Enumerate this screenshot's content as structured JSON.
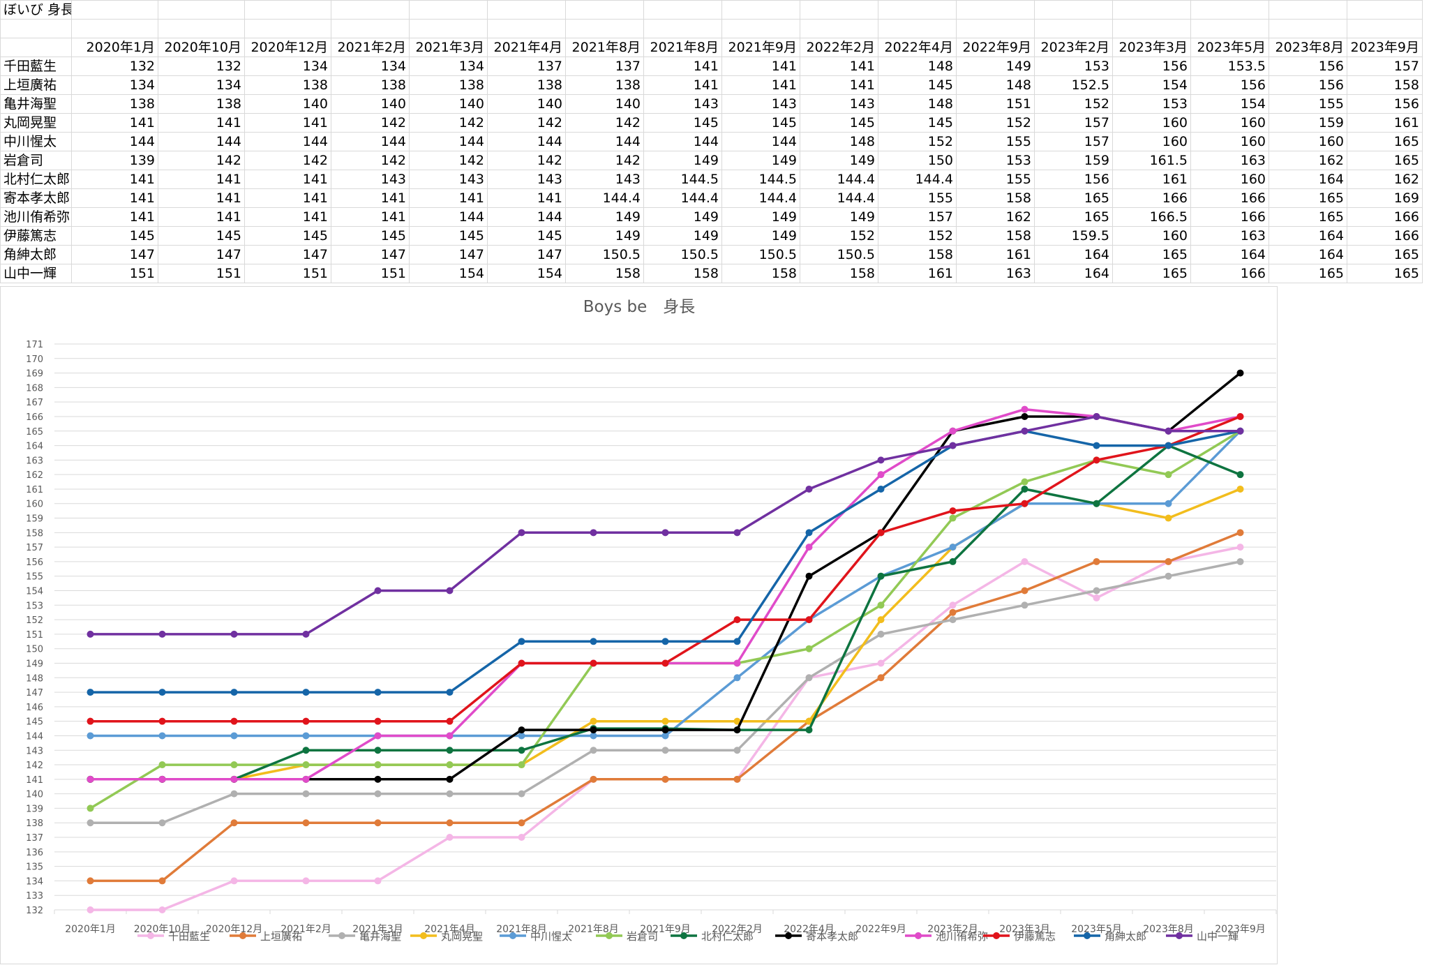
{
  "sheet": {
    "title": "ぼいび 身長",
    "headers": [
      "2020年1月",
      "2020年10月",
      "2020年12月",
      "2021年2月",
      "2021年3月",
      "2021年4月",
      "2021年8月",
      "2021年8月",
      "2021年9月",
      "2022年2月",
      "2022年4月",
      "2022年9月",
      "2023年2月",
      "2023年3月",
      "2023年5月",
      "2023年8月",
      "2023年9月"
    ],
    "rows": [
      {
        "name": "千田藍生",
        "values": [
          "132",
          "132",
          "134",
          "134",
          "134",
          "137",
          "137",
          "141",
          "141",
          "141",
          "148",
          "149",
          "153",
          "156",
          "153.5",
          "156",
          "157"
        ]
      },
      {
        "name": "上垣廣祐",
        "values": [
          "134",
          "134",
          "138",
          "138",
          "138",
          "138",
          "138",
          "141",
          "141",
          "141",
          "145",
          "148",
          "152.5",
          "154",
          "156",
          "156",
          "158"
        ]
      },
      {
        "name": "亀井海聖",
        "values": [
          "138",
          "138",
          "140",
          "140",
          "140",
          "140",
          "140",
          "143",
          "143",
          "143",
          "148",
          "151",
          "152",
          "153",
          "154",
          "155",
          "156"
        ]
      },
      {
        "name": "丸岡晃聖",
        "values": [
          "141",
          "141",
          "141",
          "142",
          "142",
          "142",
          "142",
          "145",
          "145",
          "145",
          "145",
          "152",
          "157",
          "160",
          "160",
          "159",
          "161"
        ]
      },
      {
        "name": "中川惺太",
        "values": [
          "144",
          "144",
          "144",
          "144",
          "144",
          "144",
          "144",
          "144",
          "144",
          "148",
          "152",
          "155",
          "157",
          "160",
          "160",
          "160",
          "165"
        ]
      },
      {
        "name": "岩倉司",
        "values": [
          "139",
          "142",
          "142",
          "142",
          "142",
          "142",
          "142",
          "149",
          "149",
          "149",
          "150",
          "153",
          "159",
          "161.5",
          "163",
          "162",
          "165"
        ]
      },
      {
        "name": "北村仁太郎",
        "values": [
          "141",
          "141",
          "141",
          "143",
          "143",
          "143",
          "143",
          "144.5",
          "144.5",
          "144.4",
          "144.4",
          "155",
          "156",
          "161",
          "160",
          "164",
          "162"
        ]
      },
      {
        "name": "寄本孝太郎",
        "values": [
          "141",
          "141",
          "141",
          "141",
          "141",
          "141",
          "144.4",
          "144.4",
          "144.4",
          "144.4",
          "155",
          "158",
          "165",
          "166",
          "166",
          "165",
          "169"
        ]
      },
      {
        "name": "池川侑希弥",
        "values": [
          "141",
          "141",
          "141",
          "141",
          "144",
          "144",
          "149",
          "149",
          "149",
          "149",
          "157",
          "162",
          "165",
          "166.5",
          "166",
          "165",
          "166"
        ]
      },
      {
        "name": "伊藤篤志",
        "values": [
          "145",
          "145",
          "145",
          "145",
          "145",
          "145",
          "149",
          "149",
          "149",
          "152",
          "152",
          "158",
          "159.5",
          "160",
          "163",
          "164",
          "166"
        ]
      },
      {
        "name": "角紳太郎",
        "values": [
          "147",
          "147",
          "147",
          "147",
          "147",
          "147",
          "150.5",
          "150.5",
          "150.5",
          "150.5",
          "158",
          "161",
          "164",
          "165",
          "164",
          "164",
          "165"
        ]
      },
      {
        "name": "山中一輝",
        "values": [
          "151",
          "151",
          "151",
          "151",
          "154",
          "154",
          "158",
          "158",
          "158",
          "158",
          "161",
          "163",
          "164",
          "165",
          "166",
          "165",
          "165"
        ]
      }
    ]
  },
  "chart_data": {
    "type": "line",
    "title": "Boys be　身長",
    "x": [
      "2020年1月",
      "2020年10月",
      "2020年12月",
      "2021年2月",
      "2021年3月",
      "2021年4月",
      "2021年8月",
      "2021年8月",
      "2021年9月",
      "2022年2月",
      "2022年4月",
      "2022年9月",
      "2023年2月",
      "2023年3月",
      "2023年5月",
      "2023年8月",
      "2023年9月"
    ],
    "ylim": [
      132,
      171
    ],
    "yticks": [
      "132",
      "133",
      "134",
      "135",
      "136",
      "137",
      "138",
      "139",
      "140",
      "141",
      "142",
      "143",
      "144",
      "145",
      "146",
      "147",
      "148",
      "149",
      "150",
      "151",
      "152",
      "153",
      "154",
      "155",
      "156",
      "157",
      "158",
      "159",
      "160",
      "161",
      "162",
      "163",
      "164",
      "165",
      "166",
      "167",
      "168",
      "169",
      "170",
      "171"
    ],
    "grid": true,
    "legend_position": "bottom",
    "series": [
      {
        "name": "千田藍生",
        "color": "#f4b6e6",
        "values": [
          132,
          132,
          134,
          134,
          134,
          137,
          137,
          141,
          141,
          141,
          148,
          149,
          153,
          156,
          153.5,
          156,
          157
        ]
      },
      {
        "name": "上垣廣祐",
        "color": "#e07b39",
        "values": [
          134,
          134,
          138,
          138,
          138,
          138,
          138,
          141,
          141,
          141,
          145,
          148,
          152.5,
          154,
          156,
          156,
          158
        ]
      },
      {
        "name": "亀井海聖",
        "color": "#b0b0b0",
        "values": [
          138,
          138,
          140,
          140,
          140,
          140,
          140,
          143,
          143,
          143,
          148,
          151,
          152,
          153,
          154,
          155,
          156
        ]
      },
      {
        "name": "丸岡晃聖",
        "color": "#f2bd1d",
        "values": [
          141,
          141,
          141,
          142,
          142,
          142,
          142,
          145,
          145,
          145,
          145,
          152,
          157,
          160,
          160,
          159,
          161
        ]
      },
      {
        "name": "中川惺太",
        "color": "#5b9bd5",
        "values": [
          144,
          144,
          144,
          144,
          144,
          144,
          144,
          144,
          144,
          148,
          152,
          155,
          157,
          160,
          160,
          160,
          165
        ]
      },
      {
        "name": "岩倉司",
        "color": "#92c955",
        "values": [
          139,
          142,
          142,
          142,
          142,
          142,
          142,
          149,
          149,
          149,
          150,
          153,
          159,
          161.5,
          163,
          162,
          165
        ]
      },
      {
        "name": "北村仁太郎",
        "color": "#0e7440",
        "values": [
          141,
          141,
          141,
          143,
          143,
          143,
          143,
          144.5,
          144.5,
          144.4,
          144.4,
          155,
          156,
          161,
          160,
          164,
          162
        ]
      },
      {
        "name": "寄本孝太郎",
        "color": "#000000",
        "values": [
          141,
          141,
          141,
          141,
          141,
          141,
          144.4,
          144.4,
          144.4,
          144.4,
          155,
          158,
          165,
          166,
          166,
          165,
          169
        ]
      },
      {
        "name": "池川侑希弥",
        "color": "#e04bc9",
        "values": [
          141,
          141,
          141,
          141,
          144,
          144,
          149,
          149,
          149,
          149,
          157,
          162,
          165,
          166.5,
          166,
          165,
          166
        ]
      },
      {
        "name": "伊藤篤志",
        "color": "#e0141b",
        "values": [
          145,
          145,
          145,
          145,
          145,
          145,
          149,
          149,
          149,
          152,
          152,
          158,
          159.5,
          160,
          163,
          164,
          166
        ]
      },
      {
        "name": "角紳太郎",
        "color": "#1565a8",
        "values": [
          147,
          147,
          147,
          147,
          147,
          147,
          150.5,
          150.5,
          150.5,
          150.5,
          158,
          161,
          164,
          165,
          164,
          164,
          165
        ]
      },
      {
        "name": "山中一輝",
        "color": "#7030a0",
        "values": [
          151,
          151,
          151,
          151,
          154,
          154,
          158,
          158,
          158,
          158,
          161,
          163,
          164,
          165,
          166,
          165,
          165
        ]
      }
    ]
  }
}
